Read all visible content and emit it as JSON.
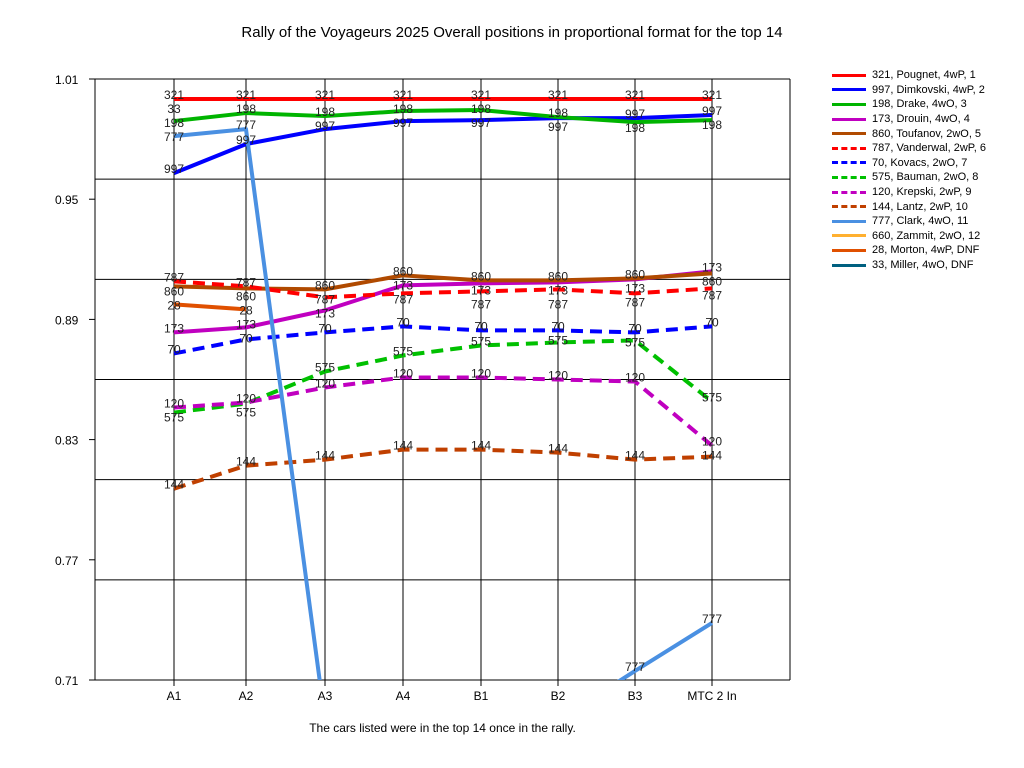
{
  "chart_data": {
    "type": "line",
    "title": "Rally of the Voyageurs 2025  Overall positions in proportional format for the top 14",
    "xlabel": "The cars listed were in the top 14 once in the rally.",
    "ylabel": "",
    "categories": [
      "A1",
      "A2",
      "A3",
      "A4",
      "B1",
      "B2",
      "B3",
      "MTC 2 In"
    ],
    "ylim": [
      0.71,
      1.01
    ],
    "yticks": [
      "1.01",
      "0.95",
      "0.89",
      "0.83",
      "0.77",
      "0.71"
    ],
    "ytick_values": [
      1.01,
      0.95,
      0.89,
      0.83,
      0.77,
      0.71
    ],
    "grid_values": [
      1.01,
      0.96,
      0.91,
      0.86,
      0.81,
      0.76,
      0.71
    ],
    "grid": true,
    "legend_position": "right",
    "series": [
      {
        "name": "321, Pougnet, 4wP, 1",
        "label": "321",
        "color": "#ff0000",
        "dash": false,
        "values": [
          1.0,
          1.0,
          1.0,
          1.0,
          1.0,
          1.0,
          1.0,
          1.0
        ]
      },
      {
        "name": "997, Dimkovski, 4wP, 2",
        "label": "997",
        "color": "#0000ff",
        "dash": false,
        "values": [
          0.963,
          0.9775,
          0.985,
          0.989,
          0.9895,
          0.9905,
          0.9905,
          0.992
        ]
      },
      {
        "name": "198, Drake, 4wO, 3",
        "label": "198",
        "color": "#00b400",
        "dash": false,
        "values": [
          0.989,
          0.993,
          0.9915,
          0.994,
          0.9945,
          0.991,
          0.9885,
          0.9895
        ]
      },
      {
        "name": "173, Drouin, 4wO, 4",
        "label": "173",
        "color": "#c000c0",
        "dash": false,
        "values": [
          0.8835,
          0.886,
          0.8945,
          0.907,
          0.908,
          0.9085,
          0.91,
          0.914
        ]
      },
      {
        "name": "860, Toufanov, 2wO, 5",
        "label": "860",
        "color": "#b04a00",
        "dash": false,
        "values": [
          0.9065,
          0.9055,
          0.905,
          0.912,
          0.9095,
          0.9095,
          0.9105,
          0.913
        ]
      },
      {
        "name": "787, Vanderwal, 2wP, 6",
        "label": "787",
        "color": "#ff0000",
        "dash": true,
        "values": [
          0.909,
          0.9065,
          0.901,
          0.903,
          0.904,
          0.905,
          0.903,
          0.9055
        ]
      },
      {
        "name": "70, Kovacs, 2wO, 7",
        "label": "70",
        "color": "#0000ff",
        "dash": true,
        "values": [
          0.873,
          0.88,
          0.8835,
          0.8865,
          0.8845,
          0.8845,
          0.8835,
          0.8865
        ]
      },
      {
        "name": "575, Bauman, 2wO, 8",
        "label": "575",
        "color": "#00c000",
        "dash": true,
        "values": [
          0.8435,
          0.848,
          0.864,
          0.872,
          0.877,
          0.8785,
          0.8795,
          0.849
        ]
      },
      {
        "name": "120, Krepski, 2wP, 9",
        "label": "120",
        "color": "#c000c0",
        "dash": true,
        "values": [
          0.846,
          0.8485,
          0.856,
          0.861,
          0.861,
          0.86,
          0.859,
          0.827
        ]
      },
      {
        "name": "144, Lantz, 2wP, 10",
        "label": "144",
        "color": "#c04000",
        "dash": true,
        "values": [
          0.8055,
          0.817,
          0.82,
          0.825,
          0.825,
          0.8235,
          0.82,
          0.8215
        ]
      },
      {
        "name": "777, Clark, 4wO, 11",
        "label": "777",
        "color": "#4a90e2",
        "dash": false,
        "values": [
          0.9815,
          0.985,
          0.69,
          null,
          null,
          0.69,
          0.7145,
          0.7385
        ]
      },
      {
        "name": "660, Zammit, 2wO, 12",
        "label": "660",
        "color": "#ffb030",
        "dash": false,
        "values": [
          null,
          null,
          null,
          null,
          null,
          null,
          null,
          null
        ]
      },
      {
        "name": "28, Morton, 4wP,  DNF",
        "label": "28",
        "color": "#e05000",
        "dash": false,
        "values": [
          0.8975,
          0.895,
          null,
          null,
          null,
          null,
          null,
          null
        ]
      },
      {
        "name": "33, Miller, 4wO,  DNF",
        "label": "33",
        "color": "#006080",
        "dash": false,
        "values": [
          0.9945,
          null,
          null,
          null,
          null,
          null,
          null,
          null
        ]
      }
    ]
  }
}
